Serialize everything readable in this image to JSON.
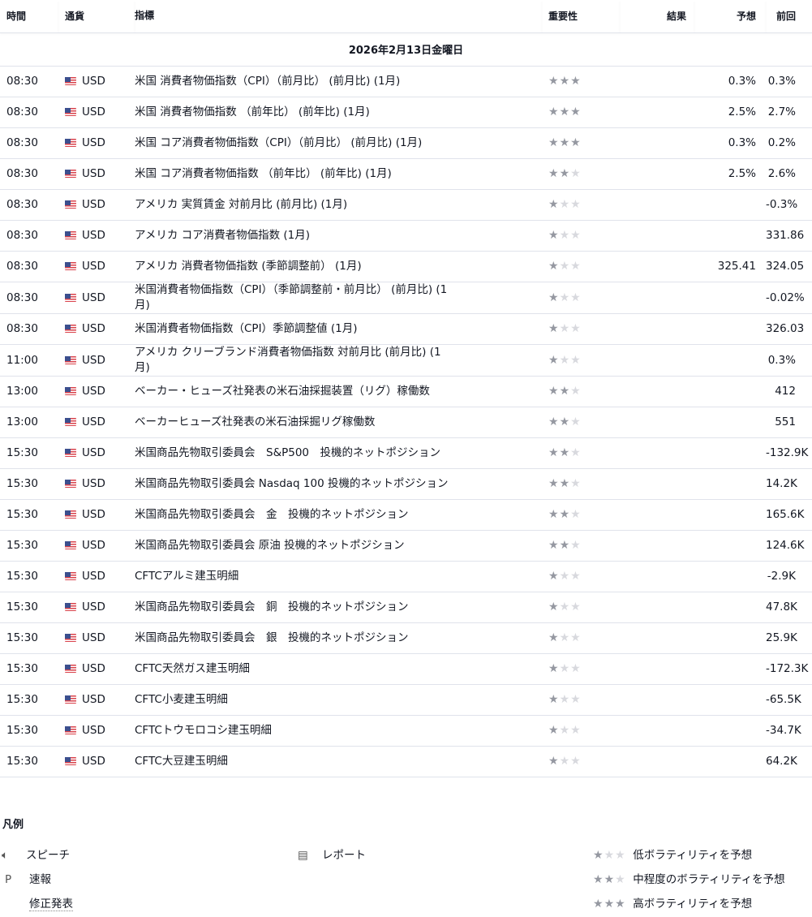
{
  "headers": {
    "time": "時間",
    "currency": "通貨",
    "indicator": "指標",
    "importance": "重要性",
    "actual": "結果",
    "forecast": "予想",
    "previous": "前回"
  },
  "date_label": "2026年2月13日金曜日",
  "colors": {
    "star_on": "#9598a1",
    "star_off": "#d8d9de",
    "border": "#e0e3eb"
  },
  "events": [
    {
      "time": "08:30",
      "currency": "USD",
      "name": "米国 消費者物価指数（CPI）（前月比） (前月比) (1月)",
      "importance": 3,
      "actual": "",
      "forecast": "0.3%",
      "previous": "0.3%"
    },
    {
      "time": "08:30",
      "currency": "USD",
      "name": "米国 消費者物価指数 （前年比） (前年比) (1月)",
      "importance": 3,
      "actual": "",
      "forecast": "2.5%",
      "previous": "2.7%"
    },
    {
      "time": "08:30",
      "currency": "USD",
      "name": "米国 コア消費者物価指数（CPI）（前月比） (前月比) (1月)",
      "importance": 3,
      "actual": "",
      "forecast": "0.3%",
      "previous": "0.2%"
    },
    {
      "time": "08:30",
      "currency": "USD",
      "name": "米国 コア消費者物価指数 （前年比） (前年比) (1月)",
      "importance": 2,
      "actual": "",
      "forecast": "2.5%",
      "previous": "2.6%"
    },
    {
      "time": "08:30",
      "currency": "USD",
      "name": "アメリカ 実質賃金 対前月比 (前月比) (1月)",
      "importance": 1,
      "actual": "",
      "forecast": "",
      "previous": "-0.3%"
    },
    {
      "time": "08:30",
      "currency": "USD",
      "name": "アメリカ コア消費者物価指数 (1月)",
      "importance": 1,
      "actual": "",
      "forecast": "",
      "previous": "331.86"
    },
    {
      "time": "08:30",
      "currency": "USD",
      "name": "アメリカ 消費者物価指数 (季節調整前） (1月)",
      "importance": 1,
      "actual": "",
      "forecast": "325.41",
      "previous": "324.05"
    },
    {
      "time": "08:30",
      "currency": "USD",
      "name": "米国消費者物価指数（CPI）（季節調整前・前月比） (前月比) (1月)",
      "importance": 1,
      "actual": "",
      "forecast": "",
      "previous": "-0.02%"
    },
    {
      "time": "08:30",
      "currency": "USD",
      "name": "米国消費者物価指数（CPI）季節調整値 (1月)",
      "importance": 1,
      "actual": "",
      "forecast": "",
      "previous": "326.03"
    },
    {
      "time": "11:00",
      "currency": "USD",
      "name": "アメリカ クリーブランド消費者物価指数 対前月比 (前月比) (1月)",
      "importance": 1,
      "actual": "",
      "forecast": "",
      "previous": "0.3%"
    },
    {
      "time": "13:00",
      "currency": "USD",
      "name": "ベーカー・ヒューズ社発表の米石油採掘装置（リグ）稼働数",
      "importance": 2,
      "actual": "",
      "forecast": "",
      "previous": "412"
    },
    {
      "time": "13:00",
      "currency": "USD",
      "name": "ベーカーヒューズ社発表の米石油採掘リグ稼働数",
      "importance": 2,
      "actual": "",
      "forecast": "",
      "previous": "551"
    },
    {
      "time": "15:30",
      "currency": "USD",
      "name": "米国商品先物取引委員会　S&P500　投機的ネットポジション",
      "importance": 2,
      "actual": "",
      "forecast": "",
      "previous": "-132.9K"
    },
    {
      "time": "15:30",
      "currency": "USD",
      "name": "米国商品先物取引委員会 Nasdaq 100 投機的ネットポジション",
      "importance": 2,
      "actual": "",
      "forecast": "",
      "previous": "14.2K"
    },
    {
      "time": "15:30",
      "currency": "USD",
      "name": "米国商品先物取引委員会　金　投機的ネットポジション",
      "importance": 2,
      "actual": "",
      "forecast": "",
      "previous": "165.6K"
    },
    {
      "time": "15:30",
      "currency": "USD",
      "name": "米国商品先物取引委員会 原油 投機的ネットポジション",
      "importance": 2,
      "actual": "",
      "forecast": "",
      "previous": "124.6K"
    },
    {
      "time": "15:30",
      "currency": "USD",
      "name": "CFTCアルミ建玉明細",
      "importance": 1,
      "actual": "",
      "forecast": "",
      "previous": "-2.9K"
    },
    {
      "time": "15:30",
      "currency": "USD",
      "name": "米国商品先物取引委員会　銅　投機的ネットポジション",
      "importance": 1,
      "actual": "",
      "forecast": "",
      "previous": "47.8K"
    },
    {
      "time": "15:30",
      "currency": "USD",
      "name": "米国商品先物取引委員会　銀　投機的ネットポジション",
      "importance": 1,
      "actual": "",
      "forecast": "",
      "previous": "25.9K"
    },
    {
      "time": "15:30",
      "currency": "USD",
      "name": "CFTC天然ガス建玉明細",
      "importance": 1,
      "actual": "",
      "forecast": "",
      "previous": "-172.3K"
    },
    {
      "time": "15:30",
      "currency": "USD",
      "name": "CFTC小麦建玉明細",
      "importance": 1,
      "actual": "",
      "forecast": "",
      "previous": "-65.5K"
    },
    {
      "time": "15:30",
      "currency": "USD",
      "name": "CFTCトウモロコシ建玉明細",
      "importance": 1,
      "actual": "",
      "forecast": "",
      "previous": "-34.7K"
    },
    {
      "time": "15:30",
      "currency": "USD",
      "name": "CFTC大豆建玉明細",
      "importance": 1,
      "actual": "",
      "forecast": "",
      "previous": "64.2K"
    }
  ],
  "legend": {
    "title": "凡例",
    "speech": "スピーチ",
    "report": "レポート",
    "preliminary_icon": "P",
    "preliminary": "速報",
    "revised": "修正発表",
    "low": "低ボラティリティを予想",
    "medium": "中程度のボラティリティを予想",
    "high": "高ボラティリティを予想"
  }
}
